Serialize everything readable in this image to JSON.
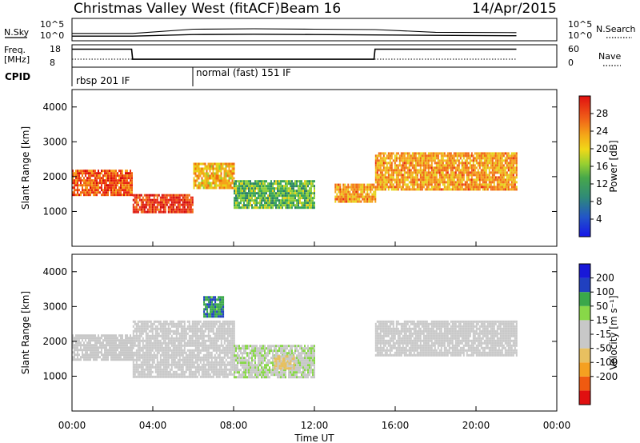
{
  "header": {
    "title": "Christmas Valley West (fitACF)",
    "beam": "Beam 16",
    "date": "14/Apr/2015"
  },
  "noise_panel": {
    "left_label": "N.Sky",
    "right_label": "N.Search",
    "left_ticks": [
      "10^5",
      "10^0"
    ],
    "right_ticks": [
      "10^5",
      "10^0"
    ]
  },
  "freq_panel": {
    "left_label_1": "Freq.",
    "left_label_2": "[MHz]",
    "left_ticks": [
      "18",
      "8"
    ],
    "right_ticks": [
      "60",
      "0"
    ],
    "right_label": "Nave"
  },
  "cpid": {
    "label": "CPID",
    "modes": [
      "rbsp 201 IF",
      "normal (fast) 151 IF"
    ]
  },
  "x_axis": {
    "label": "Time UT",
    "ticks": [
      "00:00",
      "04:00",
      "08:00",
      "12:00",
      "16:00",
      "20:00",
      "00:00"
    ]
  },
  "power_panel": {
    "ylabel": "Slant Range [km]",
    "yticks": [
      "1000",
      "2000",
      "3000",
      "4000"
    ],
    "colorbar_label": "Power [dB]",
    "colorbar_ticks": [
      "28",
      "24",
      "20",
      "16",
      "12",
      "8",
      "4"
    ]
  },
  "velocity_panel": {
    "ylabel": "Slant Range [km]",
    "yticks": [
      "1000",
      "2000",
      "3000",
      "4000"
    ],
    "colorbar_label": "Velocity [m s⁻¹]",
    "colorbar_ticks": [
      "200",
      "100",
      "50",
      "15",
      "-15",
      "-50",
      "-100",
      "-200"
    ]
  },
  "colors": {
    "power_scale": [
      "#1a1ae6",
      "#2a4fbf",
      "#2f7f6a",
      "#3aa55a",
      "#8fcf3a",
      "#e8d21a",
      "#f5a31a",
      "#f06a12",
      "#e82812",
      "#d40a0a"
    ],
    "velocity_scale": [
      "#e01010",
      "#f05a10",
      "#f5a020",
      "#e8c060",
      "#c8c8c8",
      "#c8c8c8",
      "#88d848",
      "#3aa84a",
      "#2040c0",
      "#1818d8"
    ]
  },
  "chart_data": [
    {
      "type": "line",
      "title": "",
      "x_unit": "hours UT",
      "xlim": [
        0,
        24
      ],
      "series": [
        {
          "name": "N.Sky",
          "x": [
            0,
            3,
            6,
            9,
            12,
            15,
            18,
            22
          ],
          "y": [
            1.5,
            1.5,
            2.6,
            2.7,
            2.6,
            2.5,
            1.8,
            1.7
          ]
        },
        {
          "name": "N.Search",
          "x": [
            0,
            3,
            6,
            9,
            12,
            15,
            18,
            22
          ],
          "y": [
            0.8,
            0.8,
            1.2,
            1.3,
            1.2,
            1.1,
            1.0,
            0.9
          ]
        }
      ]
    },
    {
      "type": "line",
      "title": "",
      "x_unit": "hours UT",
      "xlim": [
        0,
        24
      ],
      "series": [
        {
          "name": "Freq.",
          "x": [
            0,
            2.95,
            3.0,
            14.95,
            15.0,
            22
          ],
          "y": [
            16.4,
            16.4,
            10.6,
            10.6,
            16.4,
            16.4
          ]
        },
        {
          "name": "Nave",
          "x": [
            0,
            22
          ],
          "y": [
            20,
            20
          ]
        }
      ]
    },
    {
      "type": "heatmap",
      "title": "",
      "xlabel": "Time UT",
      "ylabel": "Slant Range [km]",
      "xlim": [
        0,
        24
      ],
      "ylim": [
        0,
        4500
      ],
      "colorbar": {
        "label": "Power [dB]",
        "range": [
          0,
          32
        ]
      },
      "regions": [
        {
          "t": [
            0,
            3
          ],
          "range_km": [
            1500,
            2200
          ],
          "power_db": 26
        },
        {
          "t": [
            3,
            6
          ],
          "range_km": [
            1000,
            1500
          ],
          "power_db": 28
        },
        {
          "t": [
            6,
            8
          ],
          "range_km": [
            1700,
            2400
          ],
          "power_db": 20
        },
        {
          "t": [
            8,
            12
          ],
          "range_km": [
            1100,
            1900
          ],
          "power_db": 12
        },
        {
          "t": [
            13,
            15
          ],
          "range_km": [
            1300,
            1800
          ],
          "power_db": 22
        },
        {
          "t": [
            15,
            22
          ],
          "range_km": [
            1600,
            2700
          ],
          "power_db": 22
        }
      ]
    },
    {
      "type": "heatmap",
      "title": "",
      "xlabel": "Time UT",
      "ylabel": "Slant Range [km]",
      "xlim": [
        0,
        24
      ],
      "ylim": [
        0,
        4500
      ],
      "colorbar": {
        "label": "Velocity [m s⁻¹]",
        "range": [
          -250,
          250
        ]
      },
      "regions": [
        {
          "t": [
            0,
            3
          ],
          "range_km": [
            1500,
            2200
          ],
          "velocity": 0
        },
        {
          "t": [
            3,
            8
          ],
          "range_km": [
            1000,
            2600
          ],
          "velocity": 0
        },
        {
          "t": [
            8,
            12
          ],
          "range_km": [
            1000,
            1900
          ],
          "velocity": 40
        },
        {
          "t": [
            10,
            11
          ],
          "range_km": [
            1200,
            1600
          ],
          "velocity": -60
        },
        {
          "t": [
            6.5,
            7.5
          ],
          "range_km": [
            2700,
            3300
          ],
          "velocity": 150
        },
        {
          "t": [
            15,
            22
          ],
          "range_km": [
            1600,
            2600
          ],
          "velocity": 0
        }
      ]
    }
  ]
}
